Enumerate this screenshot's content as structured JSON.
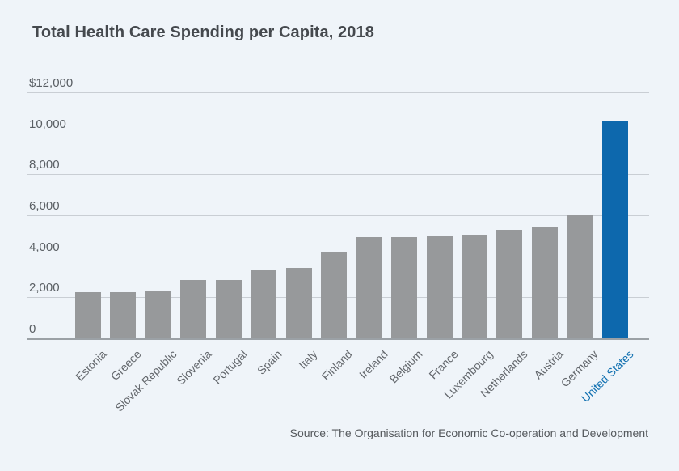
{
  "title": "Total Health Care Spending per Capita, 2018",
  "source_note": "Source: The Organisation for Economic Co-operation and Development",
  "chart_data": {
    "type": "bar",
    "title": "Total Health Care Spending per Capita, 2018",
    "categories": [
      "Estonia",
      "Greece",
      "Slovak Republic",
      "Slovenia",
      "Portugal",
      "Spain",
      "Italy",
      "Finland",
      "Ireland",
      "Belgium",
      "France",
      "Luxembourg",
      "Netherlands",
      "Austria",
      "Germany",
      "United States"
    ],
    "values": [
      2231,
      2238,
      2290,
      2859,
      2861,
      3323,
      3428,
      4236,
      4915,
      4944,
      4965,
      5070,
      5288,
      5395,
      5986,
      10586
    ],
    "xlabel": "",
    "ylabel": "",
    "ylim": [
      0,
      12000
    ],
    "y_ticks": [
      {
        "label": "$12,000",
        "value": 12000
      },
      {
        "label": "10,000",
        "value": 10000
      },
      {
        "label": "8,000",
        "value": 8000
      },
      {
        "label": "6,000",
        "value": 6000
      },
      {
        "label": "4,000",
        "value": 4000
      },
      {
        "label": "2,000",
        "value": 2000
      },
      {
        "label": "0",
        "value": 0
      }
    ],
    "grid": "horizontal",
    "legend": "none",
    "highlight_category": "United States",
    "bar_color": "#97999b",
    "highlight_color": "#0d68ad"
  },
  "colors": {
    "background": "#eff4f9",
    "title_text": "#45494e",
    "axis_text": "#5a5f64",
    "category_text": "#63676c",
    "highlight_label_text": "#0f6fb0",
    "gridline": "#c9ced4",
    "axis_line": "#9ba1a6",
    "source_text": "#55595d"
  }
}
